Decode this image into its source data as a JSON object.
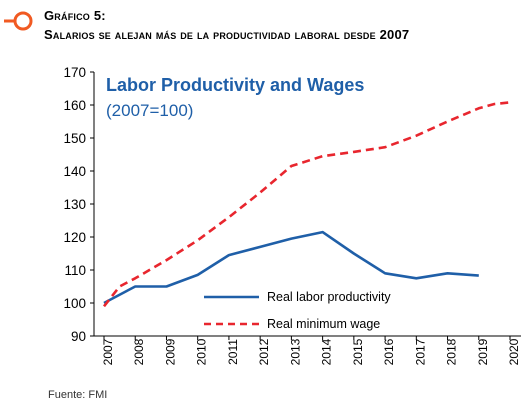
{
  "header": {
    "figure_label": "Gráfico 5:",
    "figure_subtitle": "Salarios se alejan más de la productividad laboral desde 2007"
  },
  "footer": {
    "source": "Fuente: FMI"
  },
  "colors": {
    "productivity": "#1f5fa8",
    "wage": "#e8262e",
    "title": "#1f5fa8",
    "logo": "#f15a22",
    "axis": "#000000"
  },
  "chart_data": {
    "type": "line",
    "title": "Labor Productivity and Wages",
    "subtitle": "(2007=100)",
    "xlabel": "",
    "ylabel": "",
    "ylim": [
      90,
      170
    ],
    "yticks": [
      90,
      100,
      110,
      120,
      130,
      140,
      150,
      160,
      170
    ],
    "xlim": [
      2007,
      2020
    ],
    "xticks": [
      2007,
      2008,
      2009,
      2010,
      2011,
      2012,
      2013,
      2014,
      2015,
      2016,
      2017,
      2018,
      2019,
      2020
    ],
    "grid": false,
    "legend_position": "inside-bottom",
    "series": [
      {
        "name": "Real labor productivity",
        "style": "solid",
        "x": [
          2007,
          2008,
          2009,
          2010,
          2011,
          2012,
          2013,
          2014,
          2015,
          2016,
          2017,
          2018,
          2019
        ],
        "values": [
          100,
          105,
          105,
          108.5,
          114.5,
          117,
          119.5,
          121.5,
          115,
          109,
          107.5,
          109,
          108.3
        ]
      },
      {
        "name": "Real minimum wage",
        "style": "dashed",
        "x": [
          2007,
          2007.5,
          2008,
          2009,
          2010,
          2011,
          2012,
          2013,
          2014,
          2015,
          2016,
          2017,
          2018,
          2019,
          2019.5,
          2020
        ],
        "values": [
          99,
          105,
          107.5,
          113,
          119,
          126,
          133.5,
          141.5,
          144.5,
          145.8,
          147.2,
          150.7,
          155,
          159,
          160.3,
          160.8
        ]
      }
    ]
  }
}
